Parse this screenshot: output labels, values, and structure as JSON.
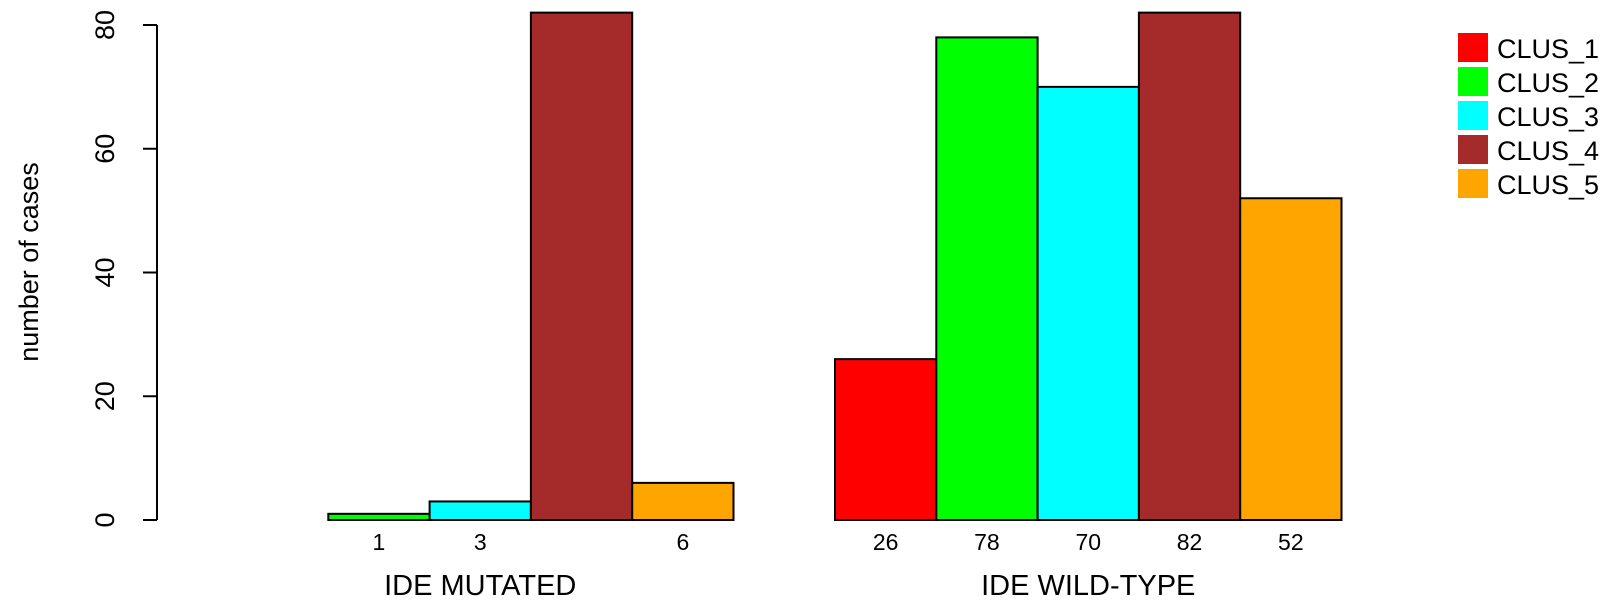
{
  "chart_data": {
    "type": "bar",
    "title": "",
    "xlabel": "",
    "ylabel": "number of cases",
    "ylim": [
      0,
      80
    ],
    "yticks": [
      0,
      20,
      40,
      60,
      80
    ],
    "grid": false,
    "legend_position": "top-right",
    "categories": [
      "IDE MUTATED",
      "IDE WILD-TYPE"
    ],
    "series": [
      {
        "name": "CLUS_1",
        "color": "#FF0000",
        "values": [
          0,
          26
        ]
      },
      {
        "name": "CLUS_2",
        "color": "#00FF00",
        "values": [
          1,
          78
        ]
      },
      {
        "name": "CLUS_3",
        "color": "#00FFFF",
        "values": [
          3,
          70
        ]
      },
      {
        "name": "CLUS_4",
        "color": "#A52A2A",
        "values": [
          82,
          82
        ]
      },
      {
        "name": "CLUS_5",
        "color": "#FFA500",
        "values": [
          6,
          52
        ]
      }
    ],
    "bar_labels": [
      [
        "",
        "1",
        "3",
        "",
        "6"
      ],
      [
        "26",
        "78",
        "70",
        "82",
        "52"
      ]
    ]
  }
}
